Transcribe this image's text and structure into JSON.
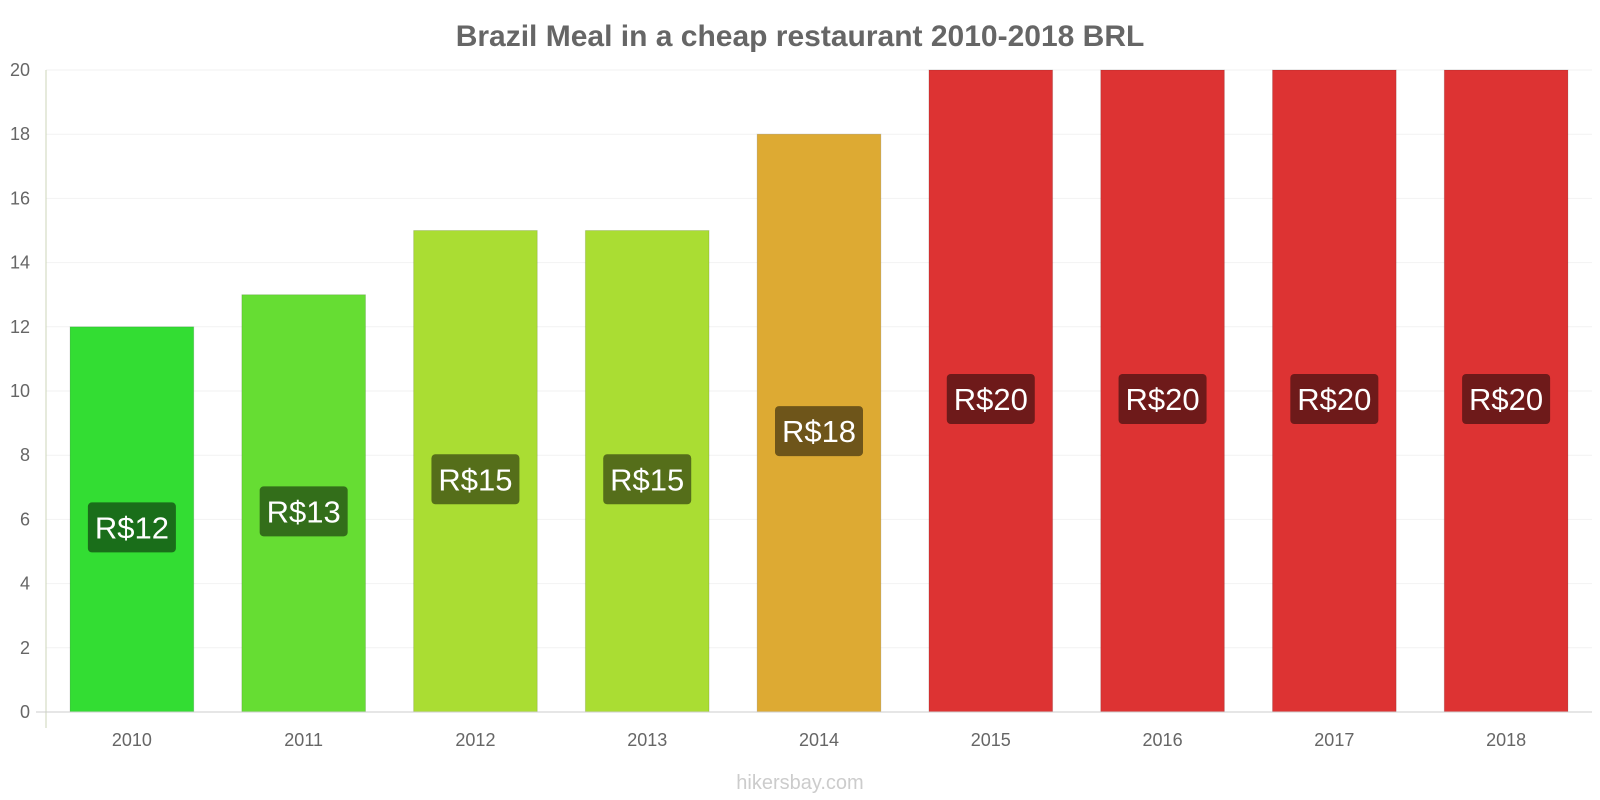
{
  "chart_data": {
    "type": "bar",
    "title": "Brazil Meal in a cheap restaurant 2010-2018 BRL",
    "xlabel": "",
    "ylabel": "",
    "ylim": [
      0,
      20
    ],
    "yticks": [
      0,
      2,
      4,
      6,
      8,
      10,
      12,
      14,
      16,
      18,
      20
    ],
    "grid": true,
    "categories": [
      "2010",
      "2011",
      "2012",
      "2013",
      "2014",
      "2015",
      "2016",
      "2017",
      "2018"
    ],
    "values": [
      12,
      13,
      15,
      15,
      18,
      20,
      20,
      20,
      20
    ],
    "data_labels": [
      "R$12",
      "R$13",
      "R$15",
      "R$15",
      "R$18",
      "R$20",
      "R$20",
      "R$20",
      "R$20"
    ],
    "bar_colors": [
      "#33dd33",
      "#66dd33",
      "#aadd33",
      "#aadd33",
      "#ddaa33",
      "#dd3333",
      "#dd3333",
      "#dd3333",
      "#dd3333"
    ],
    "label_bg_colors": [
      "#1a6e1a",
      "#336e1a",
      "#556e1a",
      "#556e1a",
      "#6e551a",
      "#6e1a1a",
      "#6e1a1a",
      "#6e1a1a",
      "#6e1a1a"
    ]
  },
  "watermark": "hikersbay.com"
}
